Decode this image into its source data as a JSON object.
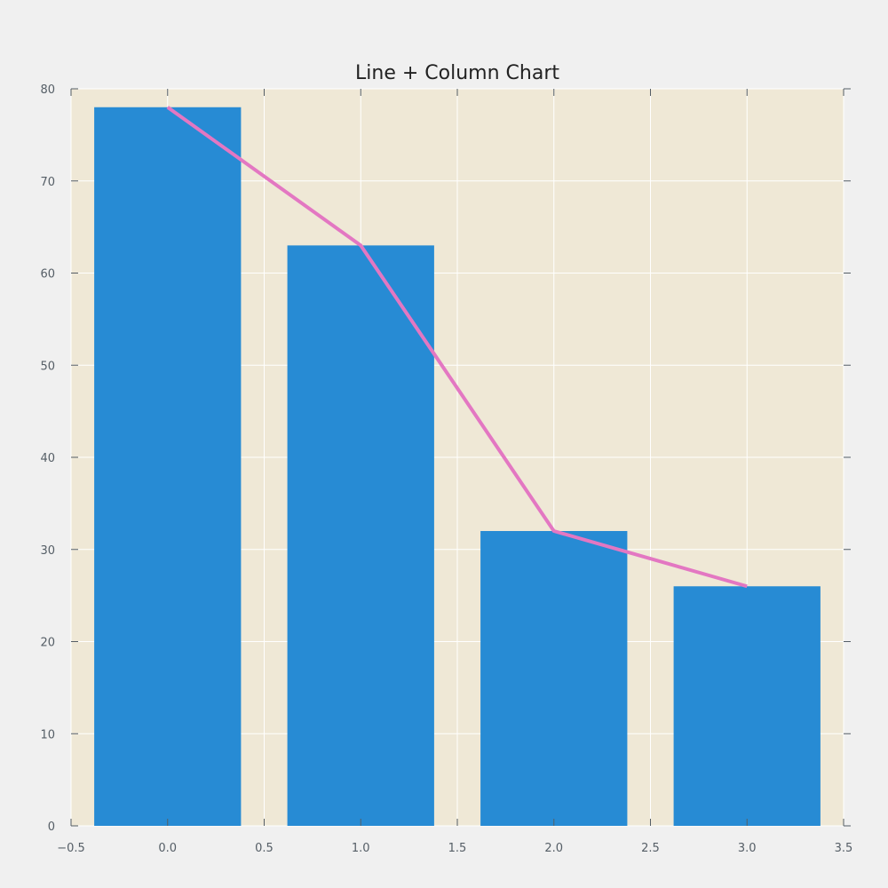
{
  "chart_data": {
    "type": "bar",
    "title": "Line + Column Chart",
    "xlabel": "",
    "ylabel": "",
    "x": [
      0,
      1,
      2,
      3
    ],
    "series": [
      {
        "kind": "bar",
        "values": [
          78,
          63,
          32,
          26
        ],
        "color": "#278bd4"
      },
      {
        "kind": "line",
        "values": [
          78,
          63,
          32,
          26
        ],
        "color": "#e377c2"
      }
    ],
    "xlim": [
      -0.5,
      3.5
    ],
    "ylim": [
      0,
      80
    ],
    "xticks": [
      "−0.5",
      "0.0",
      "0.5",
      "1.0",
      "1.5",
      "2.0",
      "2.5",
      "3.0",
      "3.5"
    ],
    "yticks": [
      "0",
      "10",
      "20",
      "30",
      "40",
      "50",
      "60",
      "70",
      "80"
    ],
    "grid": true,
    "plot_background": "#efe8d6"
  }
}
